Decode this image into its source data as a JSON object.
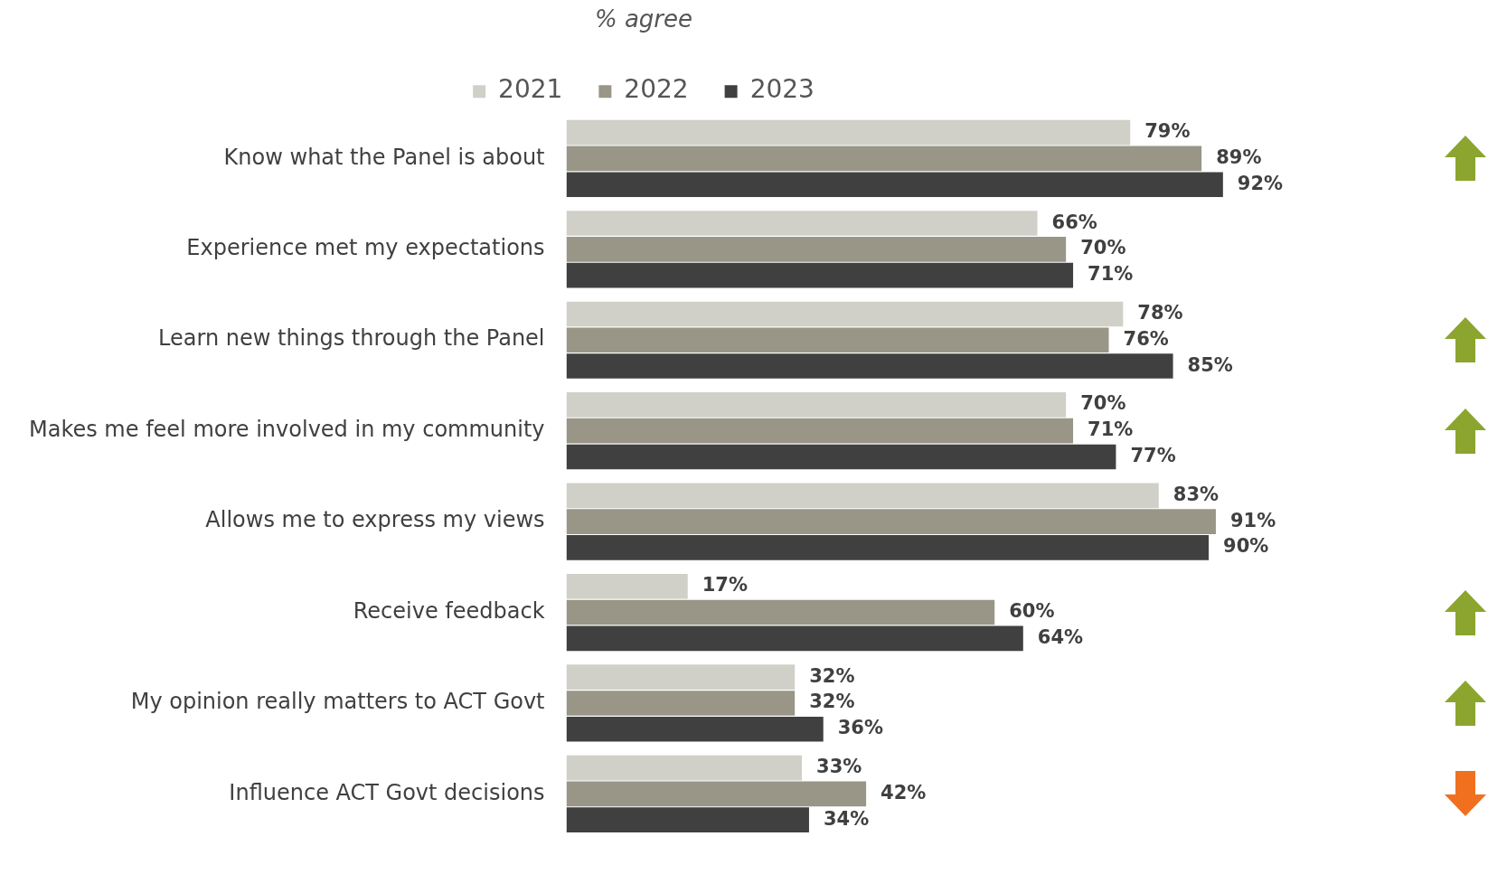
{
  "chart_data": {
    "type": "bar",
    "title": "% agree",
    "orientation": "horizontal",
    "legend": "top",
    "categories": [
      "Know what the Panel is about",
      "Experience met my expectations",
      "Learn new things through the Panel",
      "Makes me feel more involved in my community",
      "Allows me to express my views",
      "Receive feedback",
      "My opinion really matters to ACT Govt",
      "Influence ACT Govt decisions"
    ],
    "series": [
      {
        "name": "2021",
        "color": "#d0d0c8",
        "values": [
          79,
          66,
          78,
          70,
          83,
          17,
          32,
          33
        ],
        "value_labels": [
          "79%",
          "66%",
          "78%",
          "70%",
          "83%",
          "17%",
          "32%",
          "33%"
        ]
      },
      {
        "name": "2022",
        "color": "#999688",
        "values": [
          89,
          70,
          76,
          71,
          91,
          60,
          32,
          42
        ],
        "value_labels": [
          "89%",
          "70%",
          "76%",
          "71%",
          "91%",
          "60%",
          "32%",
          "42%"
        ]
      },
      {
        "name": "2023",
        "color": "#404040",
        "values": [
          92,
          71,
          85,
          77,
          90,
          64,
          36,
          34
        ],
        "value_labels": [
          "92%",
          "71%",
          "85%",
          "77%",
          "90%",
          "64%",
          "36%",
          "34%"
        ]
      }
    ]
  }
}
